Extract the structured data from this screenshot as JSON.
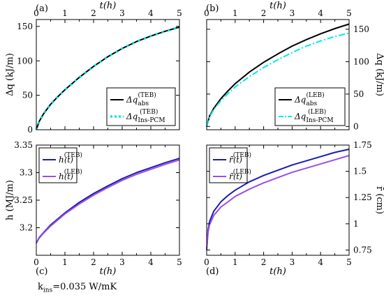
{
  "footnote": {
    "symbol": "k",
    "subscript": "ins",
    "value": "=0.035 W/mK"
  },
  "chart_data": [
    {
      "id": "a",
      "type": "line",
      "panel_label": "(a)",
      "xlabel": "t(h)",
      "xlabel_position": "top",
      "ylabel": "Δq (kJ/m)",
      "ylabel_side": "left",
      "xlim": [
        0,
        5
      ],
      "ylim": [
        0,
        160
      ],
      "xticks": [
        0,
        1,
        2,
        3,
        4,
        5
      ],
      "yticks": [
        0,
        50,
        100,
        150
      ],
      "yticklabels": [
        "0",
        "50",
        "100",
        "150"
      ],
      "legend": "bottom-right",
      "series": [
        {
          "name": "Δq_abs^(TEB)",
          "label_main": "Δq",
          "label_sub": "abs",
          "label_sup": "(TEB)",
          "color": "#000000",
          "style": "solid",
          "x": [
            0,
            0.1,
            0.25,
            0.5,
            0.75,
            1,
            1.5,
            2,
            2.5,
            3,
            3.5,
            4,
            4.5,
            5
          ],
          "y": [
            0,
            12,
            23,
            37,
            48,
            58,
            76,
            92,
            106,
            118,
            128,
            136,
            143,
            149
          ]
        },
        {
          "name": "Δq_Ins-PCM^(TEB)",
          "label_main": "Δq",
          "label_sub": "Ins-PCM",
          "label_sup": "(TEB)",
          "color": "#00e0e0",
          "style": "dotted",
          "x": [
            0,
            0.1,
            0.25,
            0.5,
            0.75,
            1,
            1.5,
            2,
            2.5,
            3,
            3.5,
            4,
            4.5,
            5
          ],
          "y": [
            0,
            12,
            23,
            37,
            48,
            58,
            76,
            92,
            106,
            118,
            128,
            136,
            143,
            149
          ]
        }
      ]
    },
    {
      "id": "b",
      "type": "line",
      "panel_label": "(b)",
      "xlabel": "t(h)",
      "xlabel_position": "top",
      "ylabel": "Δq (kJ/m)",
      "ylabel_side": "right",
      "xlim": [
        0,
        5
      ],
      "ylim": [
        -5,
        165
      ],
      "xticks": [
        0,
        1,
        2,
        3,
        4,
        5
      ],
      "yticks": [
        0,
        50,
        100,
        150
      ],
      "yticklabels": [
        "0",
        "50",
        "100",
        "150"
      ],
      "legend": "bottom-right",
      "series": [
        {
          "name": "Δq_abs^(LEB)",
          "label_main": "Δq",
          "label_sub": "abs",
          "label_sup": "(LEB)",
          "color": "#000000",
          "style": "solid",
          "x": [
            0,
            0.1,
            0.25,
            0.5,
            0.75,
            1,
            1.5,
            2,
            2.5,
            3,
            3.5,
            4,
            4.5,
            5
          ],
          "y": [
            0,
            16,
            28,
            43,
            55,
            66,
            84,
            99,
            112,
            124,
            134,
            143,
            151,
            158
          ]
        },
        {
          "name": "Δq_Ins-PCM^(LEB)",
          "label_main": "Δq",
          "label_sub": "Ins-PCM",
          "label_sup": "(LEB)",
          "color": "#00e8e8",
          "style": "dashdot",
          "x": [
            0,
            0.1,
            0.25,
            0.5,
            0.75,
            1,
            1.5,
            2,
            2.5,
            3,
            3.5,
            4,
            4.5,
            5
          ],
          "y": [
            0,
            15,
            26,
            40,
            51,
            61,
            77,
            91,
            103,
            114,
            124,
            132,
            139,
            144
          ]
        }
      ]
    },
    {
      "id": "c",
      "type": "line",
      "panel_label": "(c)",
      "xlabel": "t(h)",
      "xlabel_position": "bottom",
      "ylabel": "h (MJ/m)",
      "ylabel_side": "left",
      "xlim": [
        0,
        5
      ],
      "ylim": [
        3.15,
        3.35
      ],
      "xticks": [
        0,
        1,
        2,
        3,
        4,
        5
      ],
      "yticks": [
        3.2,
        3.25,
        3.3,
        3.35
      ],
      "yticklabels": [
        "3.2",
        "3.25",
        "3.3",
        "3.35"
      ],
      "legend": "top-left",
      "series": [
        {
          "name": "h^(TEB)(t)",
          "label_main": "h",
          "label_sup": "(TEB)",
          "label_suffix": "(t)",
          "color": "#1a1ab8",
          "style": "solid",
          "x": [
            0,
            0.1,
            0.25,
            0.5,
            0.75,
            1,
            1.5,
            2,
            2.5,
            3,
            3.5,
            4,
            4.5,
            5
          ],
          "y": [
            3.172,
            3.182,
            3.191,
            3.205,
            3.216,
            3.227,
            3.246,
            3.262,
            3.276,
            3.289,
            3.3,
            3.309,
            3.318,
            3.326
          ]
        },
        {
          "name": "h^(LEB)(t)",
          "label_main": "h",
          "label_sup": "(LEB)",
          "label_suffix": "(t)",
          "color": "#9a50e0",
          "style": "solid",
          "x": [
            0,
            0.1,
            0.25,
            0.5,
            0.75,
            1,
            1.5,
            2,
            2.5,
            3,
            3.5,
            4,
            4.5,
            5
          ],
          "y": [
            3.172,
            3.181,
            3.19,
            3.203,
            3.214,
            3.225,
            3.243,
            3.259,
            3.273,
            3.286,
            3.297,
            3.306,
            3.315,
            3.323
          ]
        }
      ]
    },
    {
      "id": "d",
      "type": "line",
      "panel_label": "(d)",
      "xlabel": "t(h)",
      "xlabel_position": "bottom",
      "ylabel": "r̄ (cm)",
      "ylabel_side": "right",
      "xlim": [
        0,
        5
      ],
      "ylim": [
        0.7,
        1.75
      ],
      "xticks": [
        0,
        1,
        2,
        3,
        4,
        5
      ],
      "yticks": [
        0.75,
        1,
        1.25,
        1.5,
        1.75
      ],
      "yticklabels": [
        "0.75",
        "1",
        "1.25",
        "1.5",
        "1.75"
      ],
      "legend": "top-left",
      "series": [
        {
          "name": "r̄^(TEB)(t)",
          "label_main": "r̄",
          "label_sup": "(TEB)",
          "label_suffix": "(t)",
          "color": "#1a1ab8",
          "style": "solid",
          "x": [
            0,
            0.05,
            0.1,
            0.25,
            0.5,
            0.75,
            1,
            1.5,
            2,
            2.5,
            3,
            3.5,
            4,
            4.5,
            5
          ],
          "y": [
            0.75,
            0.94,
            1.02,
            1.12,
            1.21,
            1.27,
            1.32,
            1.4,
            1.46,
            1.51,
            1.56,
            1.6,
            1.64,
            1.68,
            1.71
          ]
        },
        {
          "name": "r̄^(LEB)(t)",
          "label_main": "r̄",
          "label_sup": "(LEB)",
          "label_suffix": "(t)",
          "color": "#9a50e0",
          "style": "solid",
          "x": [
            0,
            0.05,
            0.1,
            0.25,
            0.5,
            0.75,
            1,
            1.5,
            2,
            2.5,
            3,
            3.5,
            4,
            4.5,
            5
          ],
          "y": [
            0.75,
            0.92,
            0.99,
            1.08,
            1.16,
            1.21,
            1.26,
            1.33,
            1.39,
            1.44,
            1.49,
            1.53,
            1.57,
            1.61,
            1.65
          ]
        }
      ]
    }
  ]
}
